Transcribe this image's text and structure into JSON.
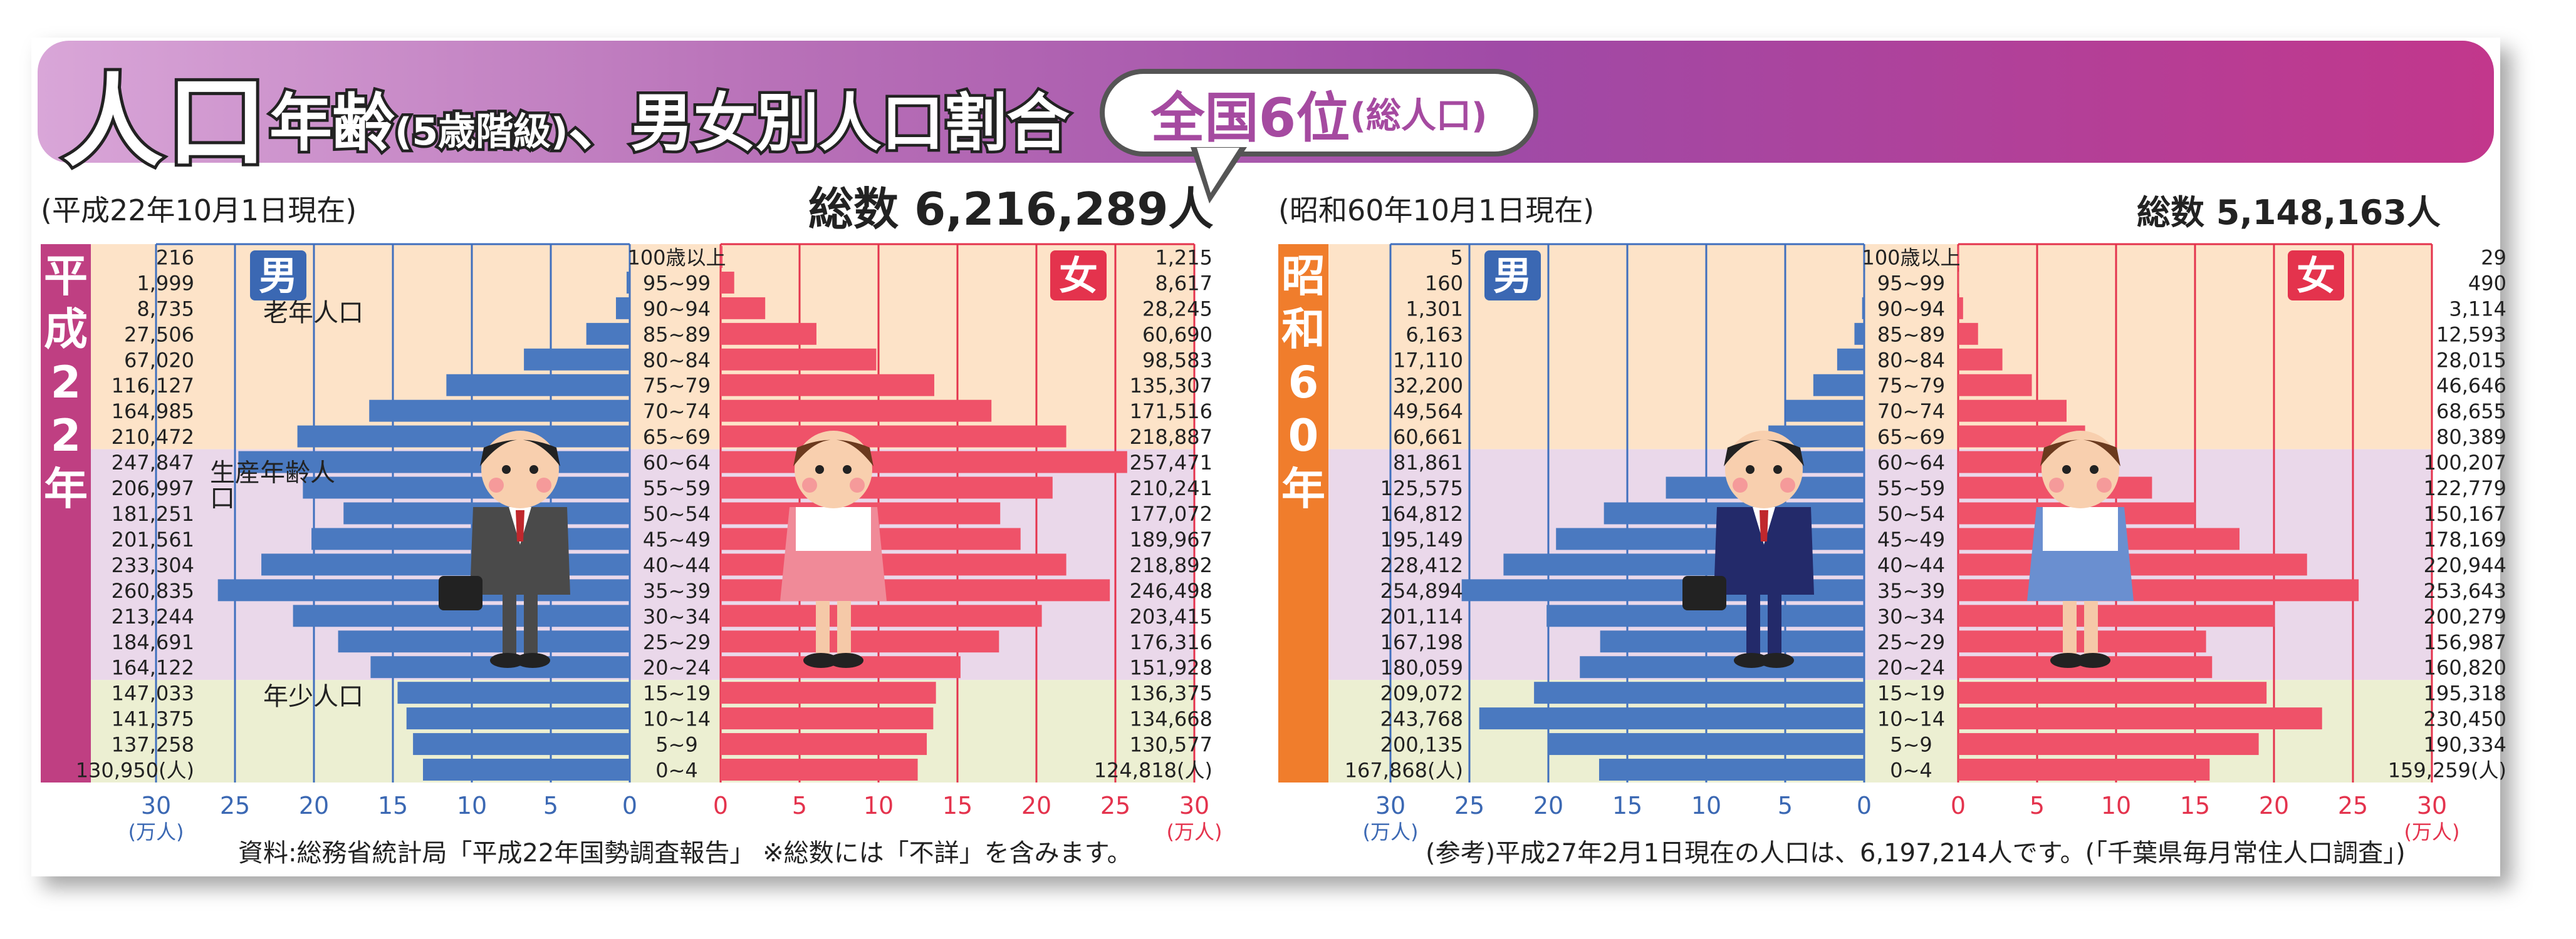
{
  "title": {
    "main": "人口",
    "sub_pre": "年齢",
    "sub_small": "(5歳階級)",
    "sub_post": "、男女別人口割合"
  },
  "rank_badge": {
    "text": "全国6位",
    "small": "(総人口)"
  },
  "colors": {
    "male_bar": "#4a79c0",
    "female_bar": "#ef5269",
    "band_elderly": "#fde3c8",
    "band_working": "#ead8ea",
    "band_young": "#ecefd2",
    "grid_male": "#3f6fbe",
    "grid_female": "#e4334d",
    "era_left": "#bf3f82",
    "era_right": "#f07d2c",
    "axis_label_male": "#3b68b3",
    "axis_label_female": "#e4334d"
  },
  "chart_data": [
    {
      "type": "bar",
      "orientation": "horizontal-population-pyramid",
      "era_label": "平成22年",
      "date_note": "(平成22年10月1日現在)",
      "total_label": "総数 6,216,289人",
      "categories": [
        "100歳以上",
        "95~99",
        "90~94",
        "85~89",
        "80~84",
        "75~79",
        "70~74",
        "65~69",
        "60~64",
        "55~59",
        "50~54",
        "45~49",
        "40~44",
        "35~39",
        "30~34",
        "25~29",
        "20~24",
        "15~19",
        "10~14",
        "5~9",
        "0~4"
      ],
      "series": [
        {
          "name": "男",
          "values": [
            216,
            1999,
            8735,
            27506,
            67020,
            116127,
            164985,
            210472,
            247847,
            206997,
            181251,
            201561,
            233304,
            260835,
            213244,
            184691,
            164122,
            147033,
            141375,
            137258,
            130950
          ],
          "labels": [
            "216",
            "1,999",
            "8,735",
            "27,506",
            "67,020",
            "116,127",
            "164,985",
            "210,472",
            "247,847",
            "206,997",
            "181,251",
            "201,561",
            "233,304",
            "260,835",
            "213,244",
            "184,691",
            "164,122",
            "147,033",
            "141,375",
            "137,258",
            "130,950(人)"
          ]
        },
        {
          "name": "女",
          "values": [
            1215,
            8617,
            28245,
            60690,
            98583,
            135307,
            171516,
            218887,
            257471,
            210241,
            177072,
            189967,
            218892,
            246498,
            203415,
            176316,
            151928,
            136375,
            134668,
            130577,
            124818
          ],
          "labels": [
            "1,215",
            "8,617",
            "28,245",
            "60,690",
            "98,583",
            "135,307",
            "171,516",
            "218,887",
            "257,471",
            "210,241",
            "177,072",
            "189,967",
            "218,892",
            "246,498",
            "203,415",
            "176,316",
            "151,928",
            "136,375",
            "134,668",
            "130,577",
            "124,818(人)"
          ]
        }
      ],
      "band_labels": {
        "elderly": "老年人口",
        "working": "生産年齢人口",
        "young": "年少人口"
      },
      "xticks": [
        "30",
        "25",
        "20",
        "15",
        "10",
        "5",
        "0"
      ],
      "xunit": "(万人)",
      "xlim": [
        0,
        30
      ],
      "source": "資料:総務省統計局「平成22年国勢調査報告」 ※総数には「不詳」を含みます。"
    },
    {
      "type": "bar",
      "orientation": "horizontal-population-pyramid",
      "era_label": "昭和60年",
      "date_note": "(昭和60年10月1日現在)",
      "total_label": "総数 5,148,163人",
      "categories": [
        "100歳以上",
        "95~99",
        "90~94",
        "85~89",
        "80~84",
        "75~79",
        "70~74",
        "65~69",
        "60~64",
        "55~59",
        "50~54",
        "45~49",
        "40~44",
        "35~39",
        "30~34",
        "25~29",
        "20~24",
        "15~19",
        "10~14",
        "5~9",
        "0~4"
      ],
      "series": [
        {
          "name": "男",
          "values": [
            5,
            160,
            1301,
            6163,
            17110,
            32200,
            49564,
            60661,
            81861,
            125575,
            164812,
            195149,
            228412,
            254894,
            201114,
            167198,
            180059,
            209072,
            243768,
            200135,
            167868
          ],
          "labels": [
            "5",
            "160",
            "1,301",
            "6,163",
            "17,110",
            "32,200",
            "49,564",
            "60,661",
            "81,861",
            "125,575",
            "164,812",
            "195,149",
            "228,412",
            "254,894",
            "201,114",
            "167,198",
            "180,059",
            "209,072",
            "243,768",
            "200,135",
            "167,868(人)"
          ]
        },
        {
          "name": "女",
          "values": [
            29,
            490,
            3114,
            12593,
            28015,
            46646,
            68655,
            80389,
            100207,
            122779,
            150167,
            178169,
            220944,
            253643,
            200279,
            156987,
            160820,
            195318,
            230450,
            190334,
            159259
          ],
          "labels": [
            "29",
            "490",
            "3,114",
            "12,593",
            "28,015",
            "46,646",
            "68,655",
            "80,389",
            "100,207",
            "122,779",
            "150,167",
            "178,169",
            "220,944",
            "253,643",
            "200,279",
            "156,987",
            "160,820",
            "195,318",
            "230,450",
            "190,334",
            "159,259(人)"
          ]
        }
      ],
      "xticks": [
        "30",
        "25",
        "20",
        "15",
        "10",
        "5",
        "0"
      ],
      "xunit": "(万人)",
      "xlim": [
        0,
        30
      ],
      "source": "(参考)平成27年2月1日現在の人口は、6,197,214人です。(「千葉県毎月常住人口調査」)"
    }
  ]
}
